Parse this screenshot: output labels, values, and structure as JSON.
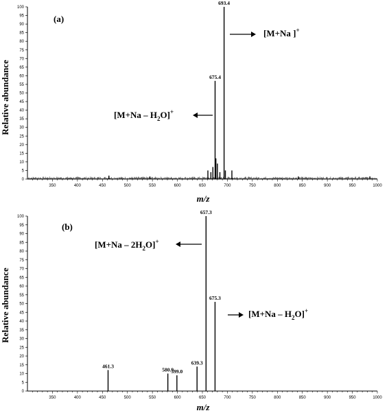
{
  "chart_data": [
    {
      "type": "bar",
      "panel": "(a)",
      "xlabel": "m/z",
      "ylabel": "Relative abundance",
      "xlim": [
        300,
        1000
      ],
      "ylim": [
        0,
        100
      ],
      "x_ticks": [
        350,
        400,
        450,
        500,
        550,
        600,
        650,
        700,
        750,
        800,
        850,
        900,
        950,
        1000
      ],
      "y_ticks": [
        0,
        5,
        10,
        15,
        20,
        25,
        30,
        35,
        40,
        45,
        50,
        55,
        60,
        65,
        70,
        75,
        80,
        85,
        90,
        95,
        100
      ],
      "peaks": [
        {
          "mz": 661,
          "intensity": 5
        },
        {
          "mz": 667,
          "intensity": 4
        },
        {
          "mz": 671,
          "intensity": 7
        },
        {
          "mz": 675.4,
          "intensity": 57,
          "label": "675.4"
        },
        {
          "mz": 677,
          "intensity": 12
        },
        {
          "mz": 680,
          "intensity": 9
        },
        {
          "mz": 685,
          "intensity": 4
        },
        {
          "mz": 693.4,
          "intensity": 100,
          "label": "693.4"
        },
        {
          "mz": 696,
          "intensity": 5
        },
        {
          "mz": 709,
          "intensity": 5
        },
        {
          "mz": 463,
          "intensity": 2
        },
        {
          "mz": 545,
          "intensity": 1.5
        },
        {
          "mz": 842,
          "intensity": 1.5
        },
        {
          "mz": 985,
          "intensity": 1.5
        }
      ],
      "annotations": [
        {
          "text": "[M+Na ]",
          "sup": "+",
          "mz": 693.4
        },
        {
          "text": "[M+Na – H",
          "sub": "2",
          "after": "O]",
          "sup": "+",
          "mz": 675.4
        }
      ]
    },
    {
      "type": "bar",
      "panel": "(b)",
      "xlabel": "m/z",
      "ylabel": "Relative abundance",
      "xlim": [
        300,
        1000
      ],
      "ylim": [
        0,
        100
      ],
      "x_ticks": [
        350,
        400,
        450,
        500,
        550,
        600,
        650,
        700,
        750,
        800,
        850,
        900,
        950,
        1000
      ],
      "y_ticks": [
        0,
        5,
        10,
        15,
        20,
        25,
        30,
        35,
        40,
        45,
        50,
        55,
        60,
        65,
        70,
        75,
        80,
        85,
        90,
        95,
        100
      ],
      "peaks": [
        {
          "mz": 461.3,
          "intensity": 12,
          "label": "461.3"
        },
        {
          "mz": 580.9,
          "intensity": 10,
          "label": "580.9"
        },
        {
          "mz": 599.0,
          "intensity": 9,
          "label": "599.0"
        },
        {
          "mz": 639.3,
          "intensity": 14,
          "label": "639.3"
        },
        {
          "mz": 657.3,
          "intensity": 100,
          "label": "657.3"
        },
        {
          "mz": 675.3,
          "intensity": 51,
          "label": "675.3"
        }
      ],
      "annotations": [
        {
          "text": "[M+Na – 2H",
          "sub": "2",
          "after": "O]",
          "sup": "+",
          "mz": 657.3
        },
        {
          "text": "[M+Na – H",
          "sub": "2",
          "after": "O]",
          "sup": "+",
          "mz": 675.3
        }
      ]
    }
  ]
}
